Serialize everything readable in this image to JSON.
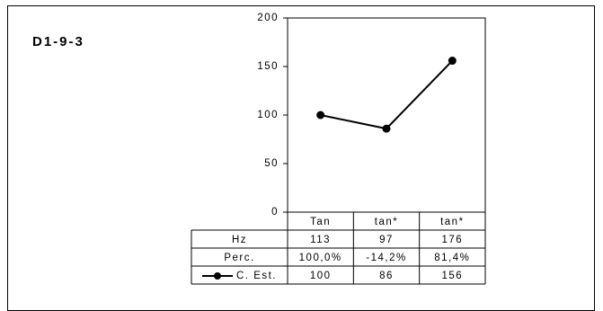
{
  "chart_id": "D1-9-3",
  "chart_data": {
    "type": "line",
    "categories": [
      "Tan",
      "tan*",
      "tan*"
    ],
    "ylim": [
      0,
      200
    ],
    "yticks": [
      0,
      50,
      100,
      150,
      200
    ],
    "series": [
      {
        "name": "C. Est.",
        "values": [
          100,
          86,
          156
        ]
      }
    ],
    "table": {
      "rows": [
        {
          "label": "Hz",
          "values": [
            "113",
            "97",
            "176"
          ]
        },
        {
          "label": "Perc.",
          "values": [
            "100,0%",
            "-14,2%",
            "81,4%"
          ]
        },
        {
          "label": "C. Est.",
          "values": [
            "100",
            "86",
            "156"
          ]
        }
      ]
    }
  }
}
